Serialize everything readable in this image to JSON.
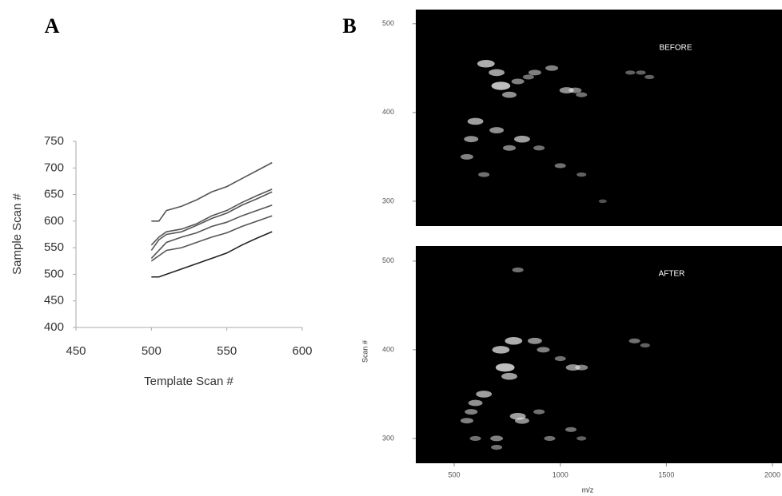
{
  "chart_data": [
    {
      "type": "line",
      "panel_label": "A",
      "xlabel": "Template Scan #",
      "ylabel": "Sample Scan #",
      "xlim": [
        450,
        600
      ],
      "ylim": [
        400,
        750
      ],
      "xticks": [
        450,
        500,
        550,
        600
      ],
      "yticks": [
        400,
        450,
        500,
        550,
        600,
        650,
        700,
        750
      ],
      "series": [
        {
          "color": "#555555",
          "x": [
            500,
            505,
            510,
            520,
            530,
            540,
            550,
            560,
            570,
            580
          ],
          "values": [
            600,
            600,
            620,
            628,
            640,
            655,
            665,
            680,
            695,
            710
          ]
        },
        {
          "color": "#555555",
          "x": [
            500,
            505,
            510,
            520,
            530,
            540,
            550,
            560,
            570,
            580
          ],
          "values": [
            555,
            570,
            580,
            585,
            595,
            610,
            620,
            635,
            648,
            660
          ]
        },
        {
          "color": "#555555",
          "x": [
            500,
            505,
            510,
            520,
            530,
            540,
            550,
            560,
            570,
            580
          ],
          "values": [
            545,
            565,
            575,
            580,
            592,
            605,
            615,
            630,
            642,
            655
          ]
        },
        {
          "color": "#555555",
          "x": [
            500,
            505,
            510,
            520,
            530,
            540,
            550,
            560,
            570,
            580
          ],
          "values": [
            530,
            545,
            560,
            570,
            578,
            590,
            598,
            610,
            620,
            630
          ]
        },
        {
          "color": "#555555",
          "x": [
            500,
            505,
            510,
            520,
            530,
            540,
            550,
            560,
            570,
            580
          ],
          "values": [
            525,
            535,
            545,
            550,
            560,
            570,
            578,
            590,
            600,
            610
          ]
        },
        {
          "color": "#222222",
          "x": [
            500,
            505,
            510,
            520,
            530,
            540,
            550,
            560,
            570,
            580
          ],
          "values": [
            495,
            495,
            500,
            510,
            520,
            530,
            540,
            555,
            568,
            580
          ]
        }
      ]
    },
    {
      "type": "scatter",
      "panel_label": "B",
      "annotation": "BEFORE",
      "background": "#000000",
      "xlim": [
        319,
        2045
      ],
      "ylim": [
        272,
        516
      ],
      "yticks": [
        300,
        400,
        500
      ],
      "series": [
        {
          "color": "#ffffff",
          "x": [
            650,
            700,
            720,
            760,
            800,
            850,
            880,
            960,
            1030,
            1070,
            1100,
            1330,
            1380,
            1420,
            600,
            580,
            560,
            640,
            700,
            760,
            820,
            900,
            1000,
            1100,
            1200
          ],
          "values": [
            455,
            445,
            430,
            420,
            435,
            440,
            445,
            450,
            425,
            425,
            420,
            445,
            445,
            440,
            390,
            370,
            350,
            330,
            380,
            360,
            370,
            360,
            340,
            330,
            300
          ],
          "intensity": [
            0.8,
            0.7,
            0.9,
            0.6,
            0.5,
            0.4,
            0.5,
            0.5,
            0.6,
            0.5,
            0.4,
            0.3,
            0.3,
            0.3,
            0.7,
            0.6,
            0.5,
            0.4,
            0.6,
            0.5,
            0.7,
            0.4,
            0.4,
            0.3,
            0.2
          ]
        }
      ]
    },
    {
      "type": "scatter",
      "annotation": "AFTER",
      "background": "#000000",
      "xlabel": "m/z",
      "ylabel": "Scan #",
      "xlim": [
        319,
        2045
      ],
      "ylim": [
        272,
        517
      ],
      "xticks": [
        500,
        1000,
        1500,
        2000
      ],
      "yticks": [
        300,
        400,
        500
      ],
      "series": [
        {
          "color": "#ffffff",
          "x": [
            780,
            800,
            880,
            920,
            1000,
            1060,
            1100,
            1350,
            1400,
            720,
            740,
            760,
            640,
            600,
            580,
            560,
            800,
            820,
            700,
            900,
            950,
            1050,
            1100,
            600,
            700
          ],
          "values": [
            410,
            490,
            410,
            400,
            390,
            380,
            380,
            410,
            405,
            400,
            380,
            370,
            350,
            340,
            330,
            320,
            325,
            320,
            300,
            330,
            300,
            310,
            300,
            300,
            290
          ],
          "intensity": [
            0.8,
            0.4,
            0.6,
            0.5,
            0.4,
            0.6,
            0.5,
            0.4,
            0.3,
            0.8,
            0.9,
            0.7,
            0.7,
            0.6,
            0.5,
            0.5,
            0.7,
            0.6,
            0.5,
            0.4,
            0.4,
            0.4,
            0.3,
            0.4,
            0.4
          ]
        }
      ]
    }
  ]
}
